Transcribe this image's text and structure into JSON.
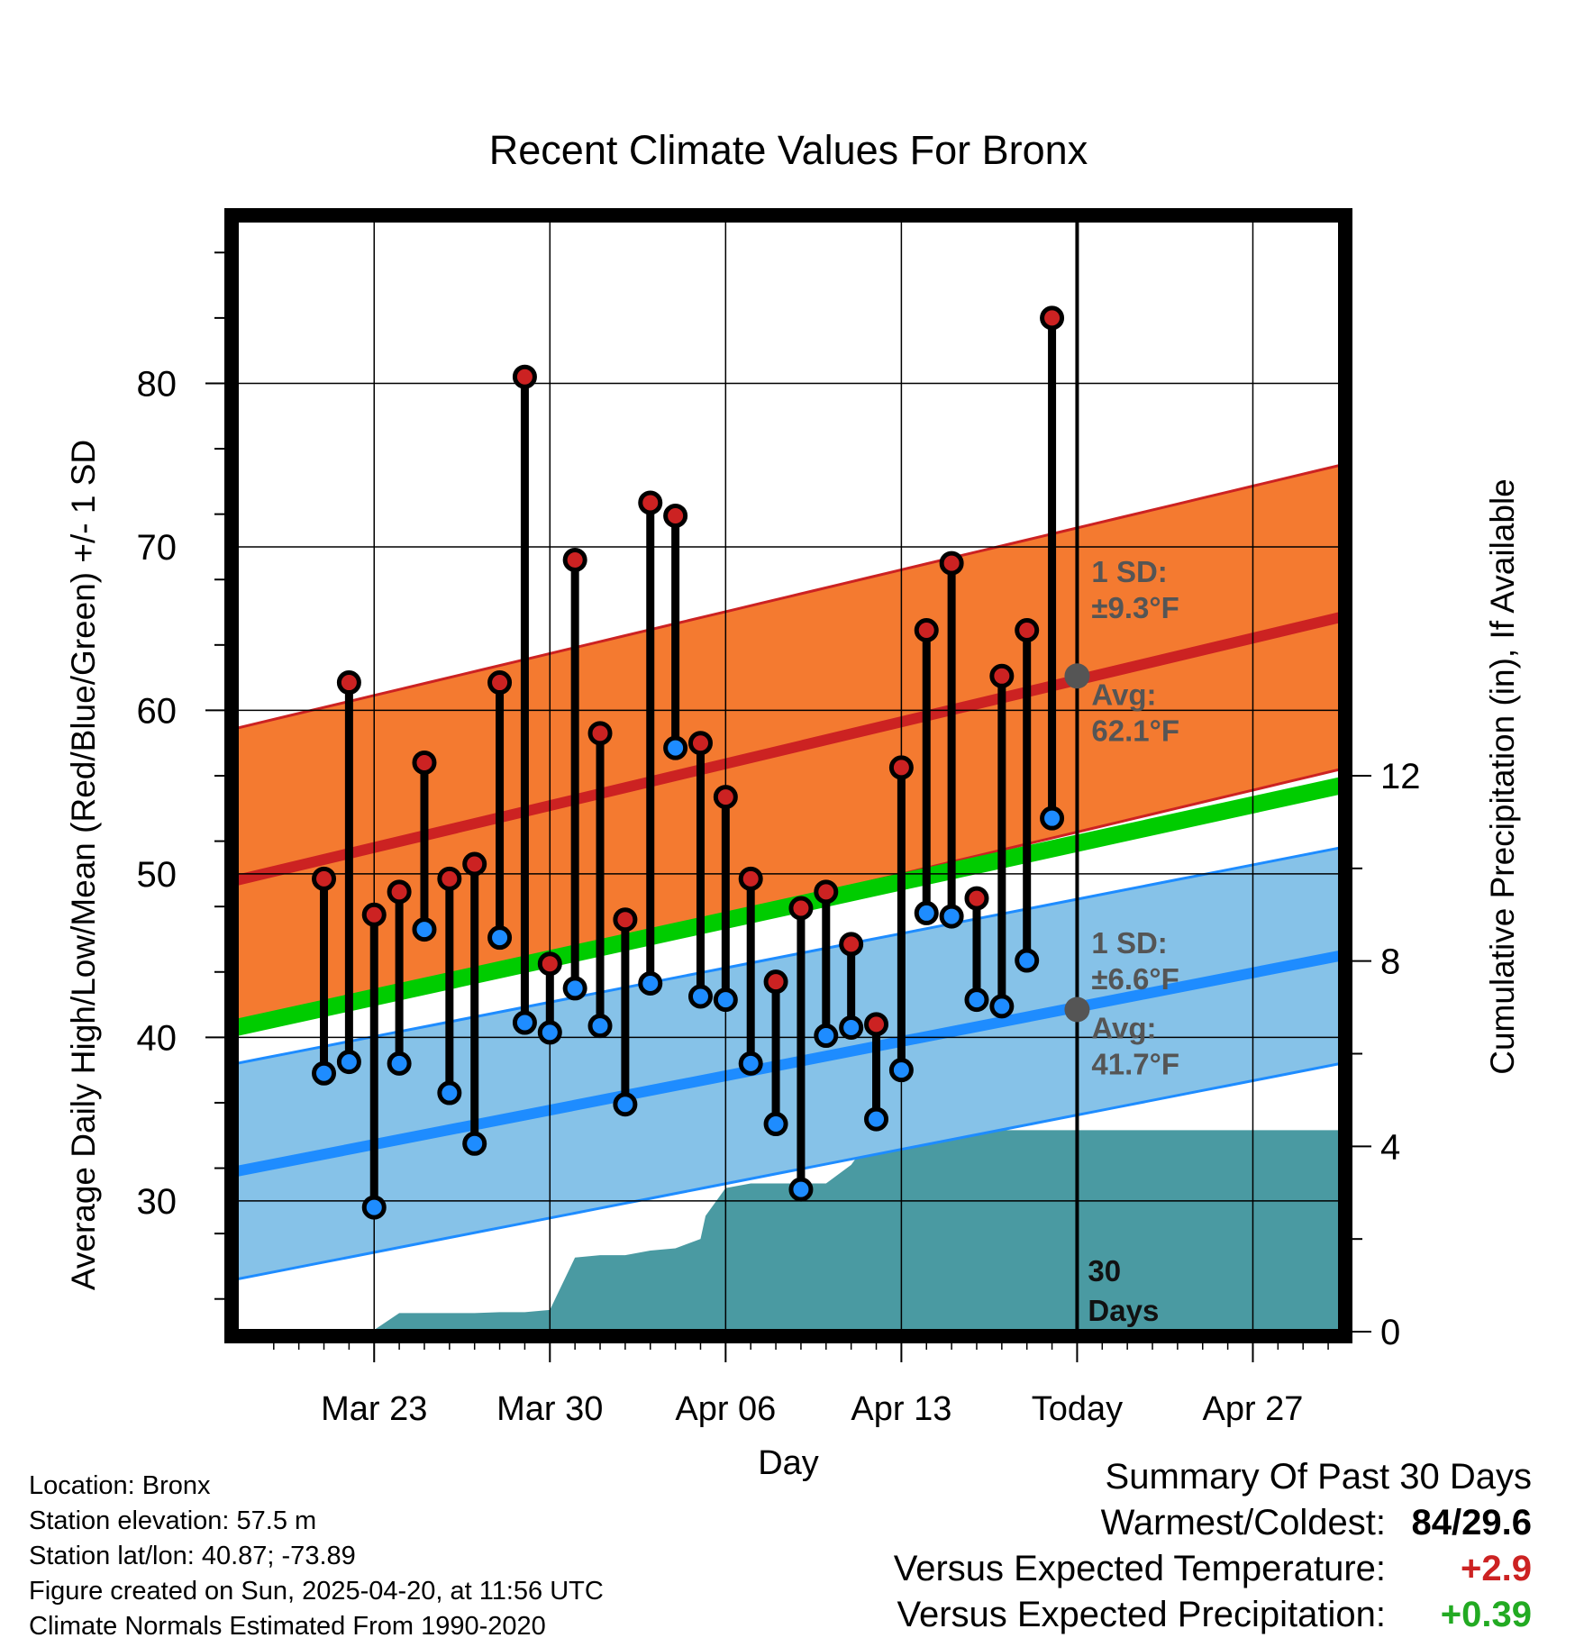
{
  "chart_data": {
    "type": "line",
    "title": "Recent Climate Values For Bronx",
    "xlabel": "Day",
    "ylabel_left": "Average Daily High/Low/Mean (Red/Blue/Green) +/- 1 SD",
    "ylabel_right": "Cumulative Precipitation (in), If Available",
    "ylim": [
      22,
      90
    ],
    "ylim_right": [
      0,
      24
    ],
    "xlim_days": [
      -33.5,
      10.5
    ],
    "y_ticks": [
      30,
      40,
      50,
      60,
      70,
      80
    ],
    "y_ticks_right": [
      0,
      4,
      8,
      12
    ],
    "x_ticks": [
      {
        "day": -28,
        "label": "Mar 23"
      },
      {
        "day": -21,
        "label": "Mar 30"
      },
      {
        "day": -14,
        "label": "Apr 06"
      },
      {
        "day": -7,
        "label": "Apr 13"
      },
      {
        "day": 0,
        "label": "Today"
      },
      {
        "day": 7,
        "label": "Apr 27"
      }
    ],
    "normal_high": {
      "start": 49.6,
      "end": 65.7,
      "sd": 9.3
    },
    "normal_low": {
      "start": 31.8,
      "end": 45.0,
      "sd": 6.6
    },
    "normal_mean": {
      "start": 40.6,
      "end": 55.4
    },
    "daily": {
      "days": [
        -30,
        -29,
        -28,
        -27,
        -26,
        -25,
        -24,
        -23,
        -22,
        -21,
        -20,
        -19,
        -18,
        -17,
        -16,
        -15,
        -14,
        -13,
        -12,
        -11,
        -10,
        -9,
        -8,
        -7,
        -6,
        -5,
        -4,
        -3,
        -2,
        -1
      ],
      "high": [
        49.7,
        61.7,
        47.5,
        48.9,
        56.8,
        49.7,
        50.6,
        61.7,
        80.4,
        44.5,
        69.2,
        58.6,
        47.2,
        72.7,
        71.9,
        58.0,
        54.7,
        49.7,
        43.4,
        47.9,
        48.9,
        45.7,
        40.8,
        56.5,
        64.9,
        69.0,
        48.5,
        62.1,
        64.9,
        84.0
      ],
      "low": [
        37.8,
        38.5,
        29.6,
        38.4,
        46.6,
        36.6,
        33.5,
        46.1,
        40.9,
        40.3,
        43.0,
        40.7,
        35.9,
        43.3,
        57.7,
        42.5,
        42.3,
        38.4,
        34.7,
        30.7,
        40.1,
        40.6,
        35.0,
        38.0,
        47.6,
        47.4,
        42.3,
        41.9,
        44.7,
        53.4
      ]
    },
    "precip": {
      "days": [
        -30,
        -29,
        -28.1,
        -27,
        -26,
        -25,
        -24,
        -23,
        -22,
        -21,
        -20,
        -19,
        -18,
        -17,
        -16,
        -15,
        -14.8,
        -14,
        -13,
        -12,
        -11,
        -10,
        -9,
        -8,
        -7,
        -6,
        -5,
        -4,
        -3,
        -2,
        -1,
        0,
        10.5
      ],
      "values": [
        0,
        0,
        0,
        0.4,
        0.4,
        0.4,
        0.4,
        0.42,
        0.42,
        0.47,
        1.6,
        1.65,
        1.65,
        1.75,
        1.8,
        2.0,
        2.5,
        3.1,
        3.2,
        3.2,
        3.2,
        3.2,
        3.6,
        4.35,
        4.35,
        4.35,
        4.35,
        4.35,
        4.35,
        4.35,
        4.35,
        4.35,
        4.35
      ]
    },
    "annotations": {
      "high_sd": "1 SD:",
      "high_sd_value": "±9.3°F",
      "high_avg": "Avg:",
      "high_avg_value": "62.1°F",
      "low_sd": "1 SD:",
      "low_sd_value": "±6.6°F",
      "low_avg": "Avg:",
      "low_avg_value": "41.7°F",
      "days_line1": "30",
      "days_line2": "Days"
    },
    "today_markers": {
      "high": 62.1,
      "low": 41.7
    }
  },
  "colors": {
    "high_band": "#f47a30",
    "high_line": "#cc2222",
    "low_band": "#86c2e8",
    "low_line": "#1e8cff",
    "mean_line": "#00cc00",
    "precip": "#4a9aa2",
    "dot_high": "#cc2222",
    "dot_low": "#1e8cff",
    "annotation": "#555555",
    "warm_text": "#cc2222",
    "precip_text": "#22aa22"
  },
  "footer": {
    "location": "Location: Bronx",
    "elevation": "Station elevation: 57.5 m",
    "latlon": "Station lat/lon: 40.87; -73.89",
    "created": "Figure created on Sun, 2025-04-20, at 11:56 UTC",
    "normals": "Climate Normals Estimated From 1990-2020"
  },
  "summary": {
    "title": "Summary Of Past 30 Days",
    "warmest_label": "Warmest/Coldest:",
    "warmest_value": "84/29.6",
    "temp_label": "Versus Expected Temperature:",
    "temp_value": "+2.9",
    "precip_label": "Versus Expected Precipitation:",
    "precip_value": "+0.39"
  }
}
